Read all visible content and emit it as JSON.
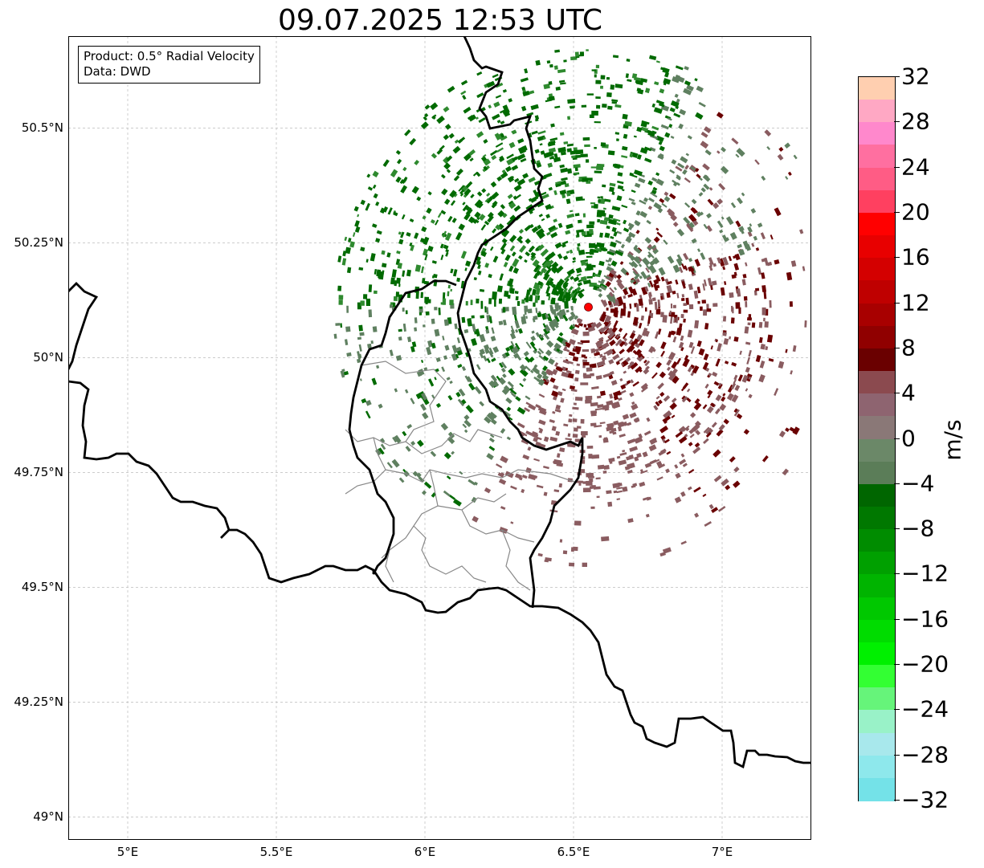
{
  "title": "09.07.2025 12:53 UTC",
  "info_box": {
    "line1": "Product: 0.5° Radial Velocity",
    "line2": "Data: DWD"
  },
  "map": {
    "x_ticks": [
      "5°E",
      "5.5°E",
      "6°E",
      "6.5°E",
      "7°E"
    ],
    "y_ticks": [
      "50.5°N",
      "50.25°N",
      "50°N",
      "49.75°N",
      "49.5°N",
      "49.25°N",
      "49°N"
    ],
    "lon_range": [
      4.8,
      7.3
    ],
    "lat_range": [
      48.95,
      50.7
    ],
    "radar_site": {
      "lon": 6.55,
      "lat": 50.11,
      "color": "#ff0000"
    },
    "gridlines": true
  },
  "colorbar": {
    "label": "m/s",
    "ticks": [
      "32",
      "28",
      "24",
      "20",
      "16",
      "12",
      "8",
      "4",
      "0",
      "−4",
      "−8",
      "−12",
      "−16",
      "−20",
      "−24",
      "−28",
      "−32"
    ],
    "range": [
      -32,
      32
    ],
    "step": 4,
    "colors_top_to_bottom": [
      "#ffcfb0",
      "#ffa8c4",
      "#ff88cc",
      "#ff6fa0",
      "#ff5c85",
      "#ff4060",
      "#ff0000",
      "#e80000",
      "#d40000",
      "#bf0000",
      "#a80000",
      "#900000",
      "#6a0000",
      "#8b4a4f",
      "#8e6470",
      "#8a7877",
      "#6b8868",
      "#5b7d58",
      "#006600",
      "#007800",
      "#008c00",
      "#00a000",
      "#00b400",
      "#00c800",
      "#00dc00",
      "#00f000",
      "#33ff33",
      "#66f47a",
      "#99f2c8",
      "#a8e8ec",
      "#8ee8ec",
      "#74e2e8"
    ]
  },
  "colors": {
    "outbound_dark": "#6a0000",
    "outbound_light": "#8a5c60",
    "inbound_dark": "#006a00",
    "inbound_light": "#5f8060",
    "border": "#000000",
    "admin_border": "#888888"
  }
}
